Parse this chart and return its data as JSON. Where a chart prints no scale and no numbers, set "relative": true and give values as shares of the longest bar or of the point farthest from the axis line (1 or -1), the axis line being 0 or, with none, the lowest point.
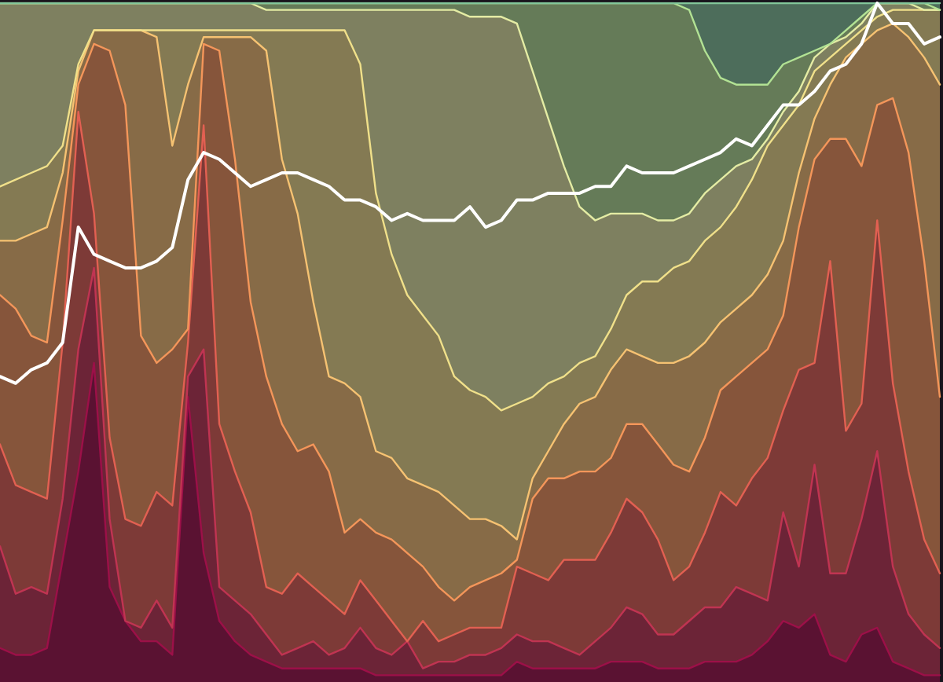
{
  "chart_data": {
    "type": "area",
    "relative": true,
    "categories": [
      null,
      null,
      null,
      null,
      null,
      null,
      null,
      null,
      null,
      null,
      null,
      null,
      null,
      null,
      null,
      null,
      null,
      null,
      null,
      null,
      null,
      null,
      null,
      null,
      null,
      null,
      null,
      null,
      null,
      null,
      null,
      null,
      null,
      null,
      null,
      null,
      null,
      null,
      null,
      null,
      null,
      null,
      null,
      null,
      null,
      null,
      null,
      null,
      null,
      null,
      null,
      null,
      null,
      null,
      null,
      null,
      null,
      null,
      null,
      null,
      null
    ],
    "series": [
      {
        "color": "#9c1048",
        "values": [
          0.05,
          0.04,
          0.04,
          0.05,
          0.18,
          0.31,
          0.47,
          0.14,
          0.09,
          0.06,
          0.06,
          0.04,
          0.42,
          0.19,
          0.09,
          0.06,
          0.04,
          0.03,
          0.02,
          0.02,
          0.02,
          0.02,
          0.02,
          0.02,
          0.01,
          0.01,
          0.01,
          0.01,
          0.01,
          0.01,
          0.01,
          0.01,
          0.01,
          0.03,
          0.02,
          0.02,
          0.02,
          0.02,
          0.02,
          0.03,
          0.03,
          0.03,
          0.02,
          0.02,
          0.02,
          0.03,
          0.03,
          0.03,
          0.04,
          0.06,
          0.09,
          0.08,
          0.1,
          0.04,
          0.03,
          0.07,
          0.08,
          0.03,
          0.02,
          0.01,
          0.01
        ]
      },
      {
        "color": "#c03452",
        "values": [
          0.2,
          0.13,
          0.14,
          0.13,
          0.27,
          0.49,
          0.61,
          0.24,
          0.09,
          0.08,
          0.12,
          0.08,
          0.45,
          0.49,
          0.14,
          0.12,
          0.1,
          0.07,
          0.04,
          0.05,
          0.06,
          0.04,
          0.05,
          0.08,
          0.05,
          0.04,
          0.06,
          0.02,
          0.03,
          0.03,
          0.04,
          0.04,
          0.05,
          0.07,
          0.06,
          0.06,
          0.05,
          0.04,
          0.06,
          0.08,
          0.11,
          0.1,
          0.07,
          0.07,
          0.09,
          0.11,
          0.11,
          0.14,
          0.13,
          0.12,
          0.25,
          0.17,
          0.32,
          0.16,
          0.16,
          0.24,
          0.34,
          0.17,
          0.1,
          0.07,
          0.05
        ]
      },
      {
        "color": "#e26052",
        "values": [
          0.35,
          0.29,
          0.28,
          0.27,
          0.5,
          0.84,
          0.69,
          0.36,
          0.24,
          0.23,
          0.28,
          0.26,
          0.5,
          0.82,
          0.38,
          0.31,
          0.25,
          0.14,
          0.13,
          0.16,
          0.14,
          0.12,
          0.1,
          0.15,
          0.12,
          0.09,
          0.06,
          0.09,
          0.06,
          0.07,
          0.08,
          0.08,
          0.08,
          0.17,
          0.16,
          0.15,
          0.18,
          0.18,
          0.18,
          0.22,
          0.27,
          0.25,
          0.21,
          0.15,
          0.17,
          0.22,
          0.28,
          0.26,
          0.3,
          0.33,
          0.4,
          0.46,
          0.47,
          0.62,
          0.37,
          0.41,
          0.68,
          0.44,
          0.31,
          0.21,
          0.16
        ]
      },
      {
        "color": "#f4965a",
        "values": [
          0.57,
          0.55,
          0.51,
          0.5,
          0.68,
          0.88,
          0.94,
          0.93,
          0.85,
          0.51,
          0.47,
          0.49,
          0.52,
          0.94,
          0.93,
          0.77,
          0.56,
          0.45,
          0.38,
          0.34,
          0.35,
          0.31,
          0.22,
          0.24,
          0.22,
          0.21,
          0.19,
          0.17,
          0.14,
          0.12,
          0.14,
          0.15,
          0.16,
          0.18,
          0.27,
          0.3,
          0.3,
          0.31,
          0.31,
          0.33,
          0.38,
          0.38,
          0.35,
          0.32,
          0.31,
          0.36,
          0.43,
          0.45,
          0.47,
          0.49,
          0.54,
          0.67,
          0.77,
          0.8,
          0.8,
          0.76,
          0.85,
          0.86,
          0.78,
          0.62,
          0.42
        ]
      },
      {
        "color": "#f6c272",
        "values": [
          0.65,
          0.65,
          0.66,
          0.67,
          0.75,
          0.9,
          0.96,
          0.96,
          0.96,
          0.96,
          0.95,
          0.79,
          0.88,
          0.95,
          0.95,
          0.95,
          0.95,
          0.93,
          0.77,
          0.69,
          0.56,
          0.45,
          0.44,
          0.42,
          0.34,
          0.33,
          0.3,
          0.29,
          0.28,
          0.26,
          0.24,
          0.24,
          0.23,
          0.21,
          0.3,
          0.34,
          0.38,
          0.41,
          0.42,
          0.46,
          0.49,
          0.48,
          0.47,
          0.47,
          0.48,
          0.5,
          0.53,
          0.55,
          0.57,
          0.6,
          0.65,
          0.75,
          0.83,
          0.88,
          0.92,
          0.94,
          0.96,
          0.97,
          0.95,
          0.92,
          0.88
        ]
      },
      {
        "color": "#f0e08a",
        "values": [
          0.73,
          0.74,
          0.75,
          0.76,
          0.79,
          0.91,
          0.96,
          0.96,
          0.96,
          0.96,
          0.96,
          0.96,
          0.96,
          0.96,
          0.96,
          0.96,
          0.96,
          0.96,
          0.96,
          0.96,
          0.96,
          0.96,
          0.96,
          0.91,
          0.72,
          0.63,
          0.57,
          0.54,
          0.51,
          0.45,
          0.43,
          0.42,
          0.4,
          0.41,
          0.42,
          0.44,
          0.45,
          0.47,
          0.48,
          0.52,
          0.57,
          0.59,
          0.59,
          0.61,
          0.62,
          0.65,
          0.67,
          0.7,
          0.74,
          0.79,
          0.82,
          0.85,
          0.9,
          0.92,
          0.94,
          0.96,
          0.98,
          0.99,
          0.99,
          0.99,
          0.99
        ]
      },
      {
        "color": "#e4eca4",
        "values": [
          1,
          1,
          1,
          1,
          1,
          1,
          1,
          1,
          1,
          1,
          1,
          1,
          1,
          1,
          1,
          1,
          1,
          0.99,
          0.99,
          0.99,
          0.99,
          0.99,
          0.99,
          0.99,
          0.99,
          0.99,
          0.99,
          0.99,
          0.99,
          0.99,
          0.98,
          0.98,
          0.98,
          0.97,
          0.9,
          0.83,
          0.76,
          0.7,
          0.68,
          0.69,
          0.69,
          0.69,
          0.68,
          0.68,
          0.69,
          0.72,
          0.74,
          0.76,
          0.77,
          0.8,
          0.84,
          0.87,
          0.92,
          0.94,
          0.95,
          0.97,
          1,
          1,
          1,
          0.99,
          0.99
        ]
      },
      {
        "color": "#b2e294",
        "values": [
          1,
          1,
          1,
          1,
          1,
          1,
          1,
          1,
          1,
          1,
          1,
          1,
          1,
          1,
          1,
          1,
          1,
          1,
          1,
          1,
          1,
          1,
          1,
          1,
          1,
          1,
          1,
          1,
          1,
          1,
          1,
          1,
          1,
          1,
          1,
          1,
          1,
          1,
          1,
          1,
          1,
          1,
          1,
          1,
          0.99,
          0.93,
          0.89,
          0.88,
          0.88,
          0.88,
          0.91,
          0.92,
          0.93,
          0.94,
          0.96,
          0.98,
          1,
          1,
          1,
          1,
          0.99
        ]
      },
      {
        "color": "#82c69a",
        "values": [
          1,
          1,
          1,
          1,
          1,
          1,
          1,
          1,
          1,
          1,
          1,
          1,
          1,
          1,
          1,
          1,
          1,
          1,
          1,
          1,
          1,
          1,
          1,
          1,
          1,
          1,
          1,
          1,
          1,
          1,
          1,
          1,
          1,
          1,
          1,
          1,
          1,
          1,
          1,
          1,
          1,
          1,
          1,
          1,
          1,
          1,
          1,
          1,
          1,
          1,
          1,
          1,
          1,
          1,
          1,
          1,
          1,
          1,
          1,
          1,
          1
        ]
      },
      {
        "type": "line",
        "color": "#ffffff",
        "values": [
          0.45,
          0.44,
          0.46,
          0.47,
          0.5,
          0.67,
          0.63,
          0.62,
          0.61,
          0.61,
          0.62,
          0.64,
          0.74,
          0.78,
          0.77,
          0.75,
          0.73,
          0.74,
          0.75,
          0.75,
          0.74,
          0.73,
          0.71,
          0.71,
          0.7,
          0.68,
          0.69,
          0.68,
          0.68,
          0.68,
          0.7,
          0.67,
          0.68,
          0.71,
          0.71,
          0.72,
          0.72,
          0.72,
          0.73,
          0.73,
          0.76,
          0.75,
          0.75,
          0.75,
          0.76,
          0.77,
          0.78,
          0.8,
          0.79,
          0.82,
          0.85,
          0.85,
          0.87,
          0.9,
          0.91,
          0.94,
          1,
          0.97,
          0.97,
          0.94,
          0.95
        ]
      }
    ]
  }
}
